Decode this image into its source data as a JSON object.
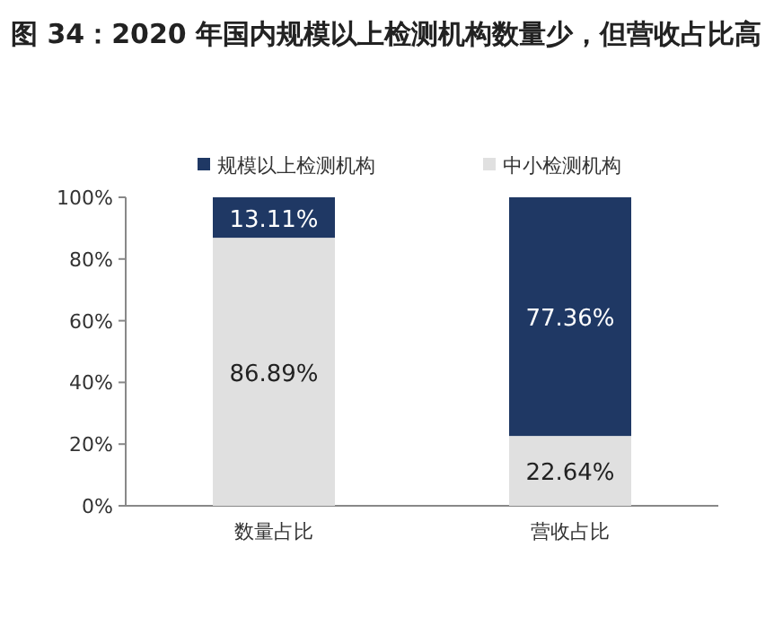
{
  "chart_data": {
    "type": "bar",
    "title": "图 34：2020 年国内规模以上检测机构数量少，但营收占比高",
    "stacked": true,
    "categories": [
      "数量占比",
      "营收占比"
    ],
    "series": [
      {
        "name": "中小检测机构",
        "color": "#e0e0e0",
        "values": [
          86.89,
          22.64
        ],
        "value_labels": [
          "86.89%",
          "22.64%"
        ]
      },
      {
        "name": "规模以上检测机构",
        "color": "#1f3864",
        "values": [
          13.11,
          77.36
        ],
        "value_labels": [
          "13.11%",
          "77.36%"
        ]
      }
    ],
    "ylim": [
      0,
      100
    ],
    "yticks": [
      {
        "value": 0,
        "label": "0%"
      },
      {
        "value": 20,
        "label": "20%"
      },
      {
        "value": 40,
        "label": "40%"
      },
      {
        "value": 60,
        "label": "60%"
      },
      {
        "value": 80,
        "label": "80%"
      },
      {
        "value": 100,
        "label": "100%"
      }
    ],
    "legend": "top",
    "grid": false
  }
}
